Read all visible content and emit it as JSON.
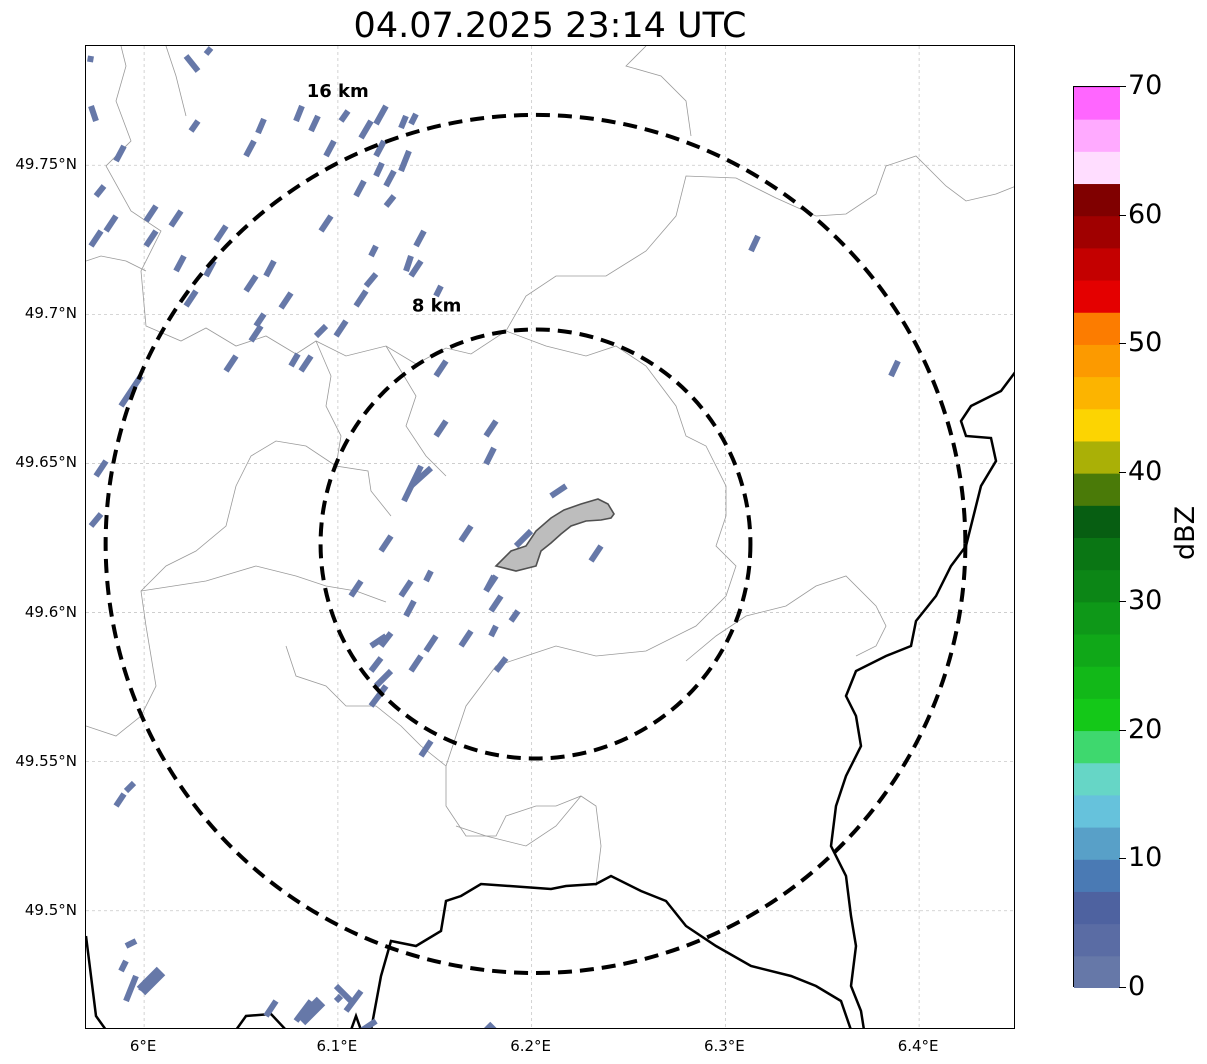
{
  "title": "04.07.2025 23:14 UTC",
  "map": {
    "lon_range": [
      5.97,
      6.45
    ],
    "lat_range": [
      49.46,
      49.79
    ],
    "x_ticks": [
      {
        "lon": 6.0,
        "label": "6°E"
      },
      {
        "lon": 6.1,
        "label": "6.1°E"
      },
      {
        "lon": 6.2,
        "label": "6.2°E"
      },
      {
        "lon": 6.3,
        "label": "6.3°E"
      },
      {
        "lon": 6.4,
        "label": "6.4°E"
      }
    ],
    "y_ticks": [
      {
        "lat": 49.75,
        "label": "49.75°N"
      },
      {
        "lat": 49.7,
        "label": "49.7°N"
      },
      {
        "lat": 49.65,
        "label": "49.65°N"
      },
      {
        "lat": 49.6,
        "label": "49.6°N"
      },
      {
        "lat": 49.55,
        "label": "49.55°N"
      },
      {
        "lat": 49.5,
        "label": "49.5°N"
      }
    ],
    "grid": true,
    "center": {
      "lon": 6.202,
      "lat": 49.623
    },
    "rings": [
      {
        "radius_km": 8,
        "label": "8 km"
      },
      {
        "radius_km": 16,
        "label": "16 km"
      }
    ],
    "ring_style": "black dashed"
  },
  "colorbar": {
    "label": "dBZ",
    "min": 0,
    "max": 70,
    "step": 2.5,
    "tick_labels": [
      "0",
      "10",
      "20",
      "30",
      "40",
      "50",
      "60",
      "70"
    ],
    "colors": [
      "#6678a8",
      "#5a6ca4",
      "#4e62a0",
      "#4a7ab4",
      "#58a0c8",
      "#66c2dc",
      "#66d6c6",
      "#3ed86e",
      "#14c818",
      "#12b818",
      "#10a818",
      "#0e9818",
      "#0c8616",
      "#0a7614",
      "#075e12",
      "#4a7a08",
      "#aab006",
      "#fcd402",
      "#fcb400",
      "#fc9a00",
      "#fc7c00",
      "#e40000",
      "#c40000",
      "#a00000",
      "#800000",
      "#ffddff",
      "#ffaaff",
      "#ff66ff",
      "#ee33ee"
    ]
  },
  "echo_color": "#6678a8",
  "echo_level_dbz": 0,
  "city_color": "#bdbdbd"
}
